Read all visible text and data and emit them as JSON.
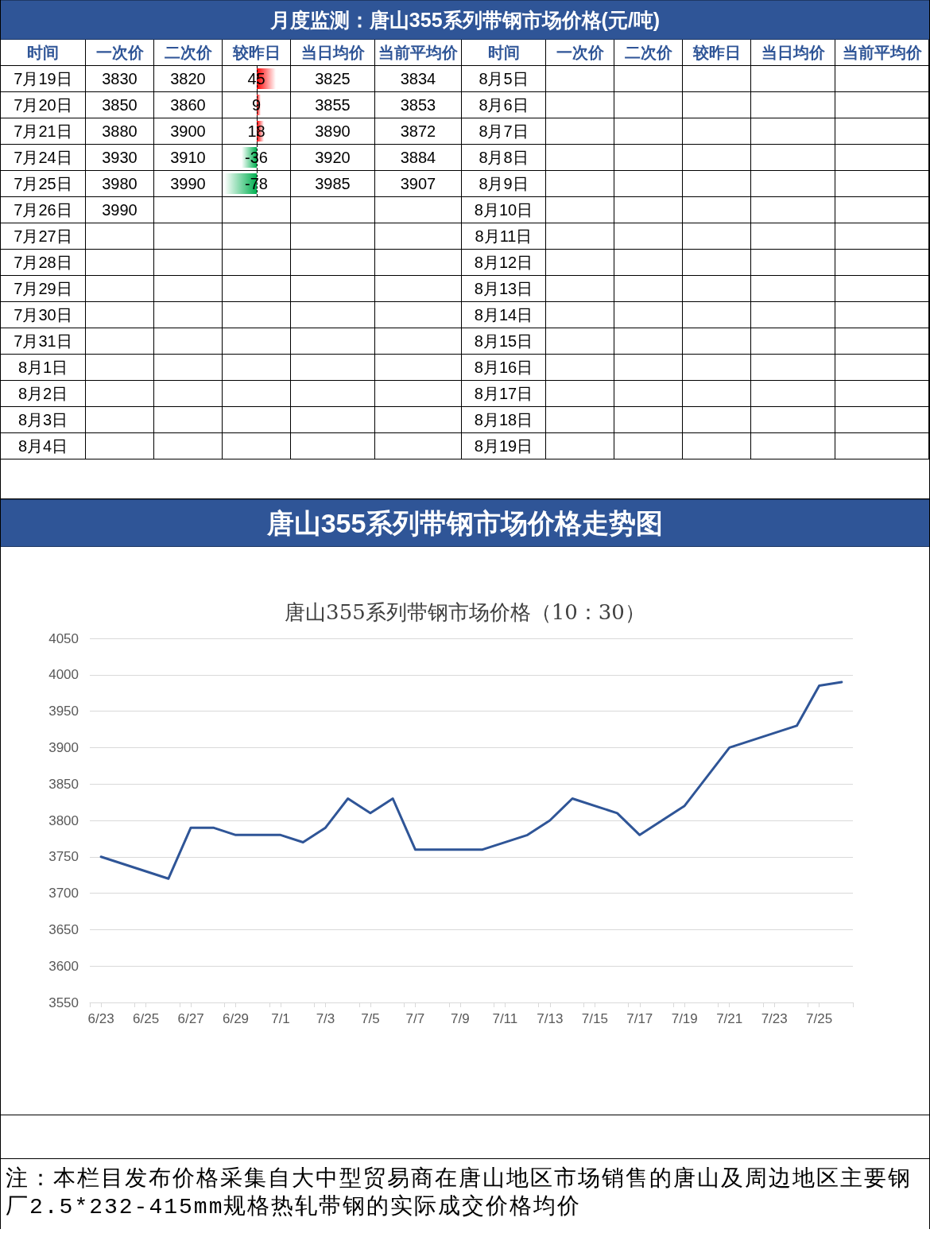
{
  "chart_data": [
    {
      "type": "other",
      "title": "月度监测：唐山355系列带钢市场价格(元/吨)",
      "xlabel": "时间",
      "categories": [
        "7月19日",
        "7月20日",
        "7月21日",
        "7月24日",
        "7月25日",
        "7月26日",
        "7月27日",
        "7月28日",
        "7月29日",
        "7月30日",
        "7月31日",
        "8月1日",
        "8月2日",
        "8月3日",
        "8月4日"
      ],
      "series": [
        {
          "name": "一次价",
          "values": [
            3830,
            3850,
            3880,
            3930,
            3980,
            3990,
            null,
            null,
            null,
            null,
            null,
            null,
            null,
            null,
            null
          ]
        },
        {
          "name": "二次价",
          "values": [
            3820,
            3860,
            3900,
            3910,
            3990,
            null,
            null,
            null,
            null,
            null,
            null,
            null,
            null,
            null,
            null
          ]
        },
        {
          "name": "较昨日",
          "type": "bar",
          "colors": [
            "#ff0000",
            "#ff0000",
            "#ff0000",
            "#00b050",
            "#00b050",
            null,
            null,
            null,
            null,
            null,
            null,
            null,
            null,
            null,
            null
          ],
          "values": [
            45,
            9,
            18,
            -36,
            -78,
            null,
            null,
            null,
            null,
            null,
            null,
            null,
            null,
            null,
            null
          ]
        },
        {
          "name": "当日均价",
          "values": [
            3825,
            3855,
            3890,
            3920,
            3985,
            null,
            null,
            null,
            null,
            null,
            null,
            null,
            null,
            null,
            null
          ]
        },
        {
          "name": "当前平均价",
          "values": [
            3834,
            3853,
            3872,
            3884,
            3907,
            null,
            null,
            null,
            null,
            null,
            null,
            null,
            null,
            null,
            null
          ]
        }
      ],
      "data_labels": true
    },
    {
      "type": "other",
      "xlabel": "时间",
      "categories": [
        "8月5日",
        "8月6日",
        "8月7日",
        "8月8日",
        "8月9日",
        "8月10日",
        "8月11日",
        "8月12日",
        "8月13日",
        "8月14日",
        "8月15日",
        "8月16日",
        "8月17日",
        "8月18日",
        "8月19日"
      ],
      "series": [
        {
          "name": "一次价",
          "values": [
            null,
            null,
            null,
            null,
            null,
            null,
            null,
            null,
            null,
            null,
            null,
            null,
            null,
            null,
            null
          ]
        },
        {
          "name": "二次价",
          "values": [
            null,
            null,
            null,
            null,
            null,
            null,
            null,
            null,
            null,
            null,
            null,
            null,
            null,
            null,
            null
          ]
        },
        {
          "name": "较昨日",
          "values": [
            null,
            null,
            null,
            null,
            null,
            null,
            null,
            null,
            null,
            null,
            null,
            null,
            null,
            null,
            null
          ]
        },
        {
          "name": "当日均价",
          "values": [
            null,
            null,
            null,
            null,
            null,
            null,
            null,
            null,
            null,
            null,
            null,
            null,
            null,
            null,
            null
          ]
        },
        {
          "name": "当前平均价",
          "values": [
            null,
            null,
            null,
            null,
            null,
            null,
            null,
            null,
            null,
            null,
            null,
            null,
            null,
            null,
            null
          ]
        }
      ]
    },
    {
      "type": "line",
      "title": "唐山355系列带钢市场价格走势图",
      "subtitle": "唐山355系列带钢市场价格（10：30）",
      "color": "#2f5597",
      "marker": "none",
      "grid": "y",
      "x": [
        "--06-23",
        "--06-26",
        "--06-27",
        "--06-28",
        "--06-29",
        "--06-30",
        "--07-01",
        "--07-02",
        "--07-03",
        "--07-04",
        "--07-05",
        "--07-06",
        "--07-07",
        "--07-10",
        "--07-12",
        "--07-13",
        "--07-14",
        "--07-16",
        "--07-17",
        "--07-19",
        "--07-21",
        "--07-24",
        "--07-25",
        "--07-26"
      ],
      "values": [
        3750,
        3720,
        3790,
        3790,
        3780,
        3780,
        3780,
        3770,
        3790,
        3830,
        3810,
        3830,
        3760,
        3760,
        3780,
        3800,
        3830,
        3810,
        3780,
        3820,
        3900,
        3930,
        3985,
        3990
      ],
      "xlim": [
        "--06-22T12:00",
        "--07-26T12:00"
      ],
      "xticks": [
        {
          "value": "--06-22T12:00",
          "label": null
        },
        {
          "value": "--06-23",
          "label": "6/23"
        },
        {
          "value": "--06-24T12:00",
          "label": null
        },
        {
          "value": "--06-25",
          "label": "6/25"
        },
        {
          "value": "--06-26T12:00",
          "label": null
        },
        {
          "value": "--06-27",
          "label": "6/27"
        },
        {
          "value": "--06-28T12:00",
          "label": null
        },
        {
          "value": "--06-29",
          "label": "6/29"
        },
        {
          "value": "--06-30T12:00",
          "label": null
        },
        {
          "value": "--07-01",
          "label": "7/1"
        },
        {
          "value": "--07-02T12:00",
          "label": null
        },
        {
          "value": "--07-03",
          "label": "7/3"
        },
        {
          "value": "--07-04T12:00",
          "label": null
        },
        {
          "value": "--07-05",
          "label": "7/5"
        },
        {
          "value": "--07-06T12:00",
          "label": null
        },
        {
          "value": "--07-07",
          "label": "7/7"
        },
        {
          "value": "--07-08T12:00",
          "label": null
        },
        {
          "value": "--07-09",
          "label": "7/9"
        },
        {
          "value": "--07-10T12:00",
          "label": null
        },
        {
          "value": "--07-11",
          "label": "7/11"
        },
        {
          "value": "--07-12T12:00",
          "label": null
        },
        {
          "value": "--07-13",
          "label": "7/13"
        },
        {
          "value": "--07-14T12:00",
          "label": null
        },
        {
          "value": "--07-15",
          "label": "7/15"
        },
        {
          "value": "--07-16T12:00",
          "label": null
        },
        {
          "value": "--07-17",
          "label": "7/17"
        },
        {
          "value": "--07-18T12:00",
          "label": null
        },
        {
          "value": "--07-19",
          "label": "7/19"
        },
        {
          "value": "--07-20T12:00",
          "label": null
        },
        {
          "value": "--07-21",
          "label": "7/21"
        },
        {
          "value": "--07-22T12:00",
          "label": null
        },
        {
          "value": "--07-23",
          "label": "7/23"
        },
        {
          "value": "--07-24T12:00",
          "label": null
        },
        {
          "value": "--07-25",
          "label": "7/25"
        },
        {
          "value": "--07-26T12:00",
          "label": null
        }
      ],
      "ylim": [
        3550,
        4050
      ],
      "yticks": [
        3550,
        3600,
        3650,
        3700,
        3750,
        3800,
        3850,
        3900,
        3950,
        4000,
        4050
      ],
      "annotations": [
        "注：本栏目发布价格采集自大中型贸易商在唐山地区市场销售的唐山及周边地区主要钢厂2.5*232-415mm规格热轧带钢的实际成交价格均价"
      ]
    }
  ]
}
